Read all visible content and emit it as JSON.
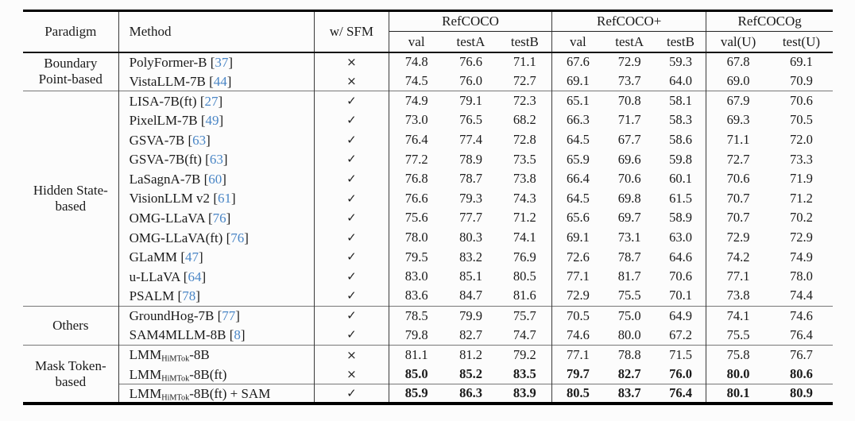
{
  "page": {
    "background": "#fcfcfc"
  },
  "colors": {
    "cite": "#4a86c6",
    "rule": "#000000"
  },
  "icons": {
    "check": "✓",
    "cross": "×"
  },
  "table": {
    "header": {
      "paradigm": "Paradigm",
      "method": "Method",
      "sfm": "w/ SFM",
      "groups": [
        {
          "label": "RefCOCO",
          "cols": [
            "val",
            "testA",
            "testB"
          ]
        },
        {
          "label": "RefCOCO+",
          "cols": [
            "val",
            "testA",
            "testB"
          ]
        },
        {
          "label": "RefCOCOg",
          "cols": [
            "val(U)",
            "test(U)"
          ]
        }
      ]
    },
    "groups": [
      {
        "paradigm": "Boundary Point-based",
        "rows": [
          {
            "method": "PolyFormer-B",
            "sub": "",
            "tail": "",
            "cite": "37",
            "sfm": "cross",
            "bold": false,
            "rule_above": false,
            "values": [
              "74.8",
              "76.6",
              "71.1",
              "67.6",
              "72.9",
              "59.3",
              "67.8",
              "69.1"
            ]
          },
          {
            "method": "VistaLLM-7B",
            "sub": "",
            "tail": "",
            "cite": "44",
            "sfm": "cross",
            "bold": false,
            "rule_above": false,
            "values": [
              "74.5",
              "76.0",
              "72.7",
              "69.1",
              "73.7",
              "64.0",
              "69.0",
              "70.9"
            ]
          }
        ]
      },
      {
        "paradigm": "Hidden State-based",
        "rows": [
          {
            "method": "LISA-7B(ft)",
            "sub": "",
            "tail": "",
            "cite": "27",
            "sfm": "check",
            "bold": false,
            "rule_above": false,
            "values": [
              "74.9",
              "79.1",
              "72.3",
              "65.1",
              "70.8",
              "58.1",
              "67.9",
              "70.6"
            ]
          },
          {
            "method": "PixelLM-7B",
            "sub": "",
            "tail": "",
            "cite": "49",
            "sfm": "check",
            "bold": false,
            "rule_above": false,
            "values": [
              "73.0",
              "76.5",
              "68.2",
              "66.3",
              "71.7",
              "58.3",
              "69.3",
              "70.5"
            ]
          },
          {
            "method": "GSVA-7B",
            "sub": "",
            "tail": "",
            "cite": "63",
            "sfm": "check",
            "bold": false,
            "rule_above": false,
            "values": [
              "76.4",
              "77.4",
              "72.8",
              "64.5",
              "67.7",
              "58.6",
              "71.1",
              "72.0"
            ]
          },
          {
            "method": "GSVA-7B(ft)",
            "sub": "",
            "tail": "",
            "cite": "63",
            "sfm": "check",
            "bold": false,
            "rule_above": false,
            "values": [
              "77.2",
              "78.9",
              "73.5",
              "65.9",
              "69.6",
              "59.8",
              "72.7",
              "73.3"
            ]
          },
          {
            "method": "LaSagnA-7B",
            "sub": "",
            "tail": "",
            "cite": "60",
            "sfm": "check",
            "bold": false,
            "rule_above": false,
            "values": [
              "76.8",
              "78.7",
              "73.8",
              "66.4",
              "70.6",
              "60.1",
              "70.6",
              "71.9"
            ]
          },
          {
            "method": "VisionLLM v2",
            "sub": "",
            "tail": "",
            "cite": "61",
            "sfm": "check",
            "bold": false,
            "rule_above": false,
            "values": [
              "76.6",
              "79.3",
              "74.3",
              "64.5",
              "69.8",
              "61.5",
              "70.7",
              "71.2"
            ]
          },
          {
            "method": "OMG-LLaVA",
            "sub": "",
            "tail": "",
            "cite": "76",
            "sfm": "check",
            "bold": false,
            "rule_above": false,
            "values": [
              "75.6",
              "77.7",
              "71.2",
              "65.6",
              "69.7",
              "58.9",
              "70.7",
              "70.2"
            ]
          },
          {
            "method": "OMG-LLaVA(ft)",
            "sub": "",
            "tail": "",
            "cite": "76",
            "sfm": "check",
            "bold": false,
            "rule_above": false,
            "values": [
              "78.0",
              "80.3",
              "74.1",
              "69.1",
              "73.1",
              "63.0",
              "72.9",
              "72.9"
            ]
          },
          {
            "method": "GLaMM",
            "sub": "",
            "tail": "",
            "cite": "47",
            "sfm": "check",
            "bold": false,
            "rule_above": false,
            "values": [
              "79.5",
              "83.2",
              "76.9",
              "72.6",
              "78.7",
              "64.6",
              "74.2",
              "74.9"
            ]
          },
          {
            "method": "u-LLaVA",
            "sub": "",
            "tail": "",
            "cite": "64",
            "sfm": "check",
            "bold": false,
            "rule_above": false,
            "values": [
              "83.0",
              "85.1",
              "80.5",
              "77.1",
              "81.7",
              "70.6",
              "77.1",
              "78.0"
            ]
          },
          {
            "method": "PSALM",
            "sub": "",
            "tail": "",
            "cite": "78",
            "sfm": "check",
            "bold": false,
            "rule_above": false,
            "values": [
              "83.6",
              "84.7",
              "81.6",
              "72.9",
              "75.5",
              "70.1",
              "73.8",
              "74.4"
            ]
          }
        ]
      },
      {
        "paradigm": "Others",
        "rows": [
          {
            "method": "GroundHog-7B",
            "sub": "",
            "tail": "",
            "cite": "77",
            "sfm": "check",
            "bold": false,
            "rule_above": false,
            "values": [
              "78.5",
              "79.9",
              "75.7",
              "70.5",
              "75.0",
              "64.9",
              "74.1",
              "74.6"
            ]
          },
          {
            "method": "SAM4MLLM-8B",
            "sub": "",
            "tail": "",
            "cite": "8",
            "sfm": "check",
            "bold": false,
            "rule_above": false,
            "values": [
              "79.8",
              "82.7",
              "74.7",
              "74.6",
              "80.0",
              "67.2",
              "75.5",
              "76.4"
            ]
          }
        ]
      },
      {
        "paradigm": "Mask Token-based",
        "rows": [
          {
            "method": "LMM",
            "sub": "HiMTok",
            "tail": "-8B",
            "cite": "",
            "sfm": "cross",
            "bold": false,
            "rule_above": false,
            "values": [
              "81.1",
              "81.2",
              "79.2",
              "77.1",
              "78.8",
              "71.5",
              "75.8",
              "76.7"
            ]
          },
          {
            "method": "LMM",
            "sub": "HiMTok",
            "tail": "-8B(ft)",
            "cite": "",
            "sfm": "cross",
            "bold": true,
            "rule_above": false,
            "values": [
              "85.0",
              "85.2",
              "83.5",
              "79.7",
              "82.7",
              "76.0",
              "80.0",
              "80.6"
            ]
          },
          {
            "method": "LMM",
            "sub": "HiMTok",
            "tail": "-8B(ft) + SAM",
            "cite": "",
            "sfm": "check",
            "bold": true,
            "rule_above": true,
            "values": [
              "85.9",
              "86.3",
              "83.9",
              "80.5",
              "83.7",
              "76.4",
              "80.1",
              "80.9"
            ]
          }
        ]
      }
    ]
  }
}
